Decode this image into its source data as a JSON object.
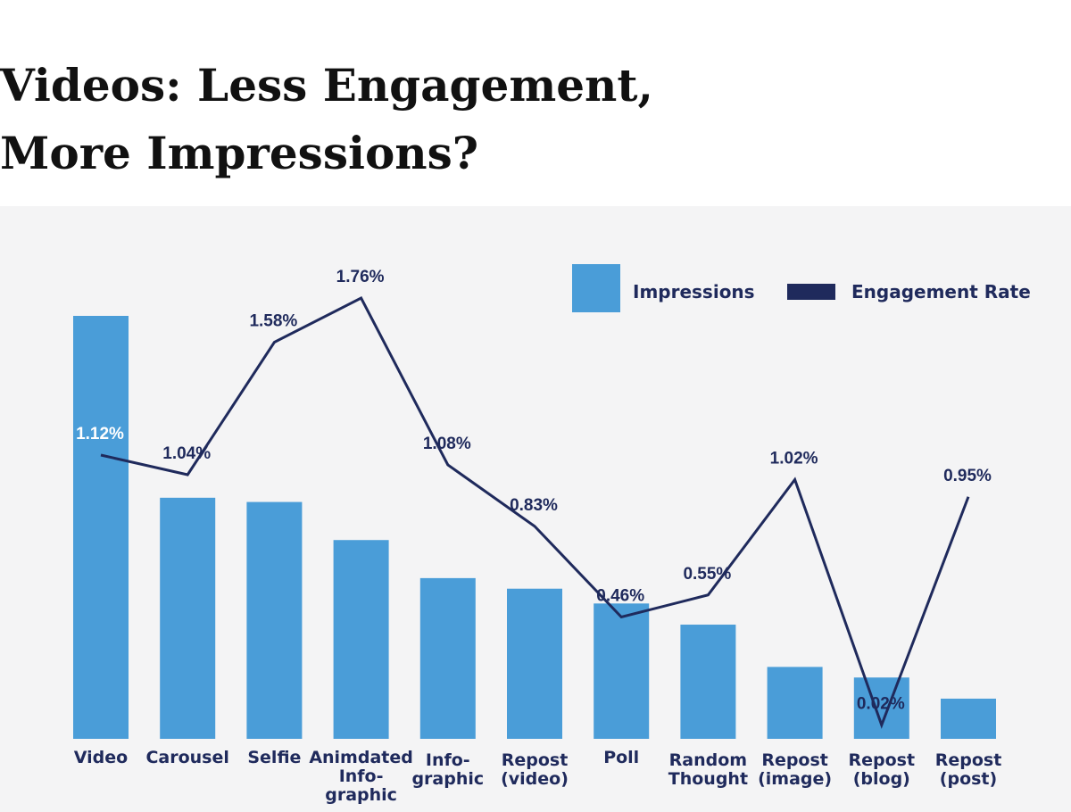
{
  "title": "Videos: Less Engagement,\nMore Impressions?",
  "chart_data": {
    "type": "bar+line",
    "title": "Videos: Less Engagement, More Impressions?",
    "categories": [
      [
        "Video"
      ],
      [
        "Carousel"
      ],
      [
        "Selfie"
      ],
      [
        "Animdated",
        "Info-",
        "graphic"
      ],
      [
        "Info-",
        "graphic"
      ],
      [
        "Repost",
        "(video)"
      ],
      [
        "Poll"
      ],
      [
        "Random",
        "Thought"
      ],
      [
        "Repost",
        "(image)"
      ],
      [
        "Repost",
        "(blog)"
      ],
      [
        "Repost",
        "(post)"
      ]
    ],
    "series": [
      {
        "name": "Impressions",
        "type": "bar",
        "color": "#4a9dd8",
        "values": [
          100,
          57,
          56,
          47,
          38,
          35.5,
          32,
          27,
          17,
          14.5,
          9.5
        ]
      },
      {
        "name": "Engagement Rate",
        "type": "line",
        "color": "#1f2a5c",
        "values": [
          1.12,
          1.04,
          1.58,
          1.76,
          1.08,
          0.83,
          0.46,
          0.55,
          1.02,
          0.02,
          0.95
        ],
        "labels": [
          "1.12%",
          "1.04%",
          "1.58%",
          "1.76%",
          "1.08%",
          "0.83%",
          "0.46%",
          "0.55%",
          "1.02%",
          "0.02%",
          "0.95%"
        ]
      }
    ],
    "legend": "top-right",
    "grid": false,
    "y_axis_visible": false
  }
}
